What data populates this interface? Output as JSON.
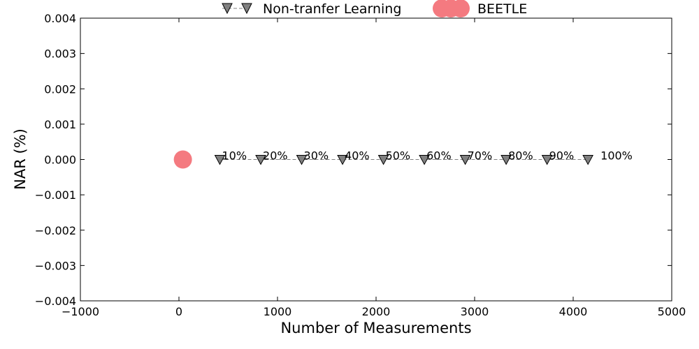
{
  "chart_data": {
    "type": "scatter",
    "xlabel": "Number of Measurements",
    "ylabel": "NAR (%)",
    "xlim": [
      -1000,
      5000
    ],
    "ylim": [
      -0.004,
      0.004
    ],
    "x_ticks": [
      -1000,
      0,
      1000,
      2000,
      3000,
      4000,
      5000
    ],
    "y_ticks": [
      0.004,
      0.003,
      0.002,
      0.001,
      0.0,
      -0.001,
      -0.002,
      -0.003,
      -0.004
    ],
    "x_tick_labels": [
      "−1000",
      "0",
      "1000",
      "2000",
      "3000",
      "4000",
      "5000"
    ],
    "y_tick_labels": [
      "0.004",
      "0.003",
      "0.002",
      "0.001",
      "0.000",
      "−0.001",
      "−0.002",
      "−0.003",
      "−0.004"
    ],
    "grid": false,
    "legend_position": "top-center",
    "series": [
      {
        "name": "Non-tranfer Learning",
        "marker": "triangle-down",
        "color": "#808080",
        "line": "dashed",
        "x": [
          415,
          830,
          1245,
          1660,
          2075,
          2490,
          2905,
          3320,
          3735,
          4150
        ],
        "y": [
          0,
          0,
          0,
          0,
          0,
          0,
          0,
          0,
          0,
          0
        ],
        "labels": [
          "10%",
          "20%",
          "30%",
          "40%",
          "50%",
          "60%",
          "70%",
          "80%",
          "90%",
          "100%"
        ]
      },
      {
        "name": "BEETLE",
        "marker": "circle",
        "color": "#f47a80",
        "x": [
          40
        ],
        "y": [
          0
        ]
      }
    ]
  }
}
